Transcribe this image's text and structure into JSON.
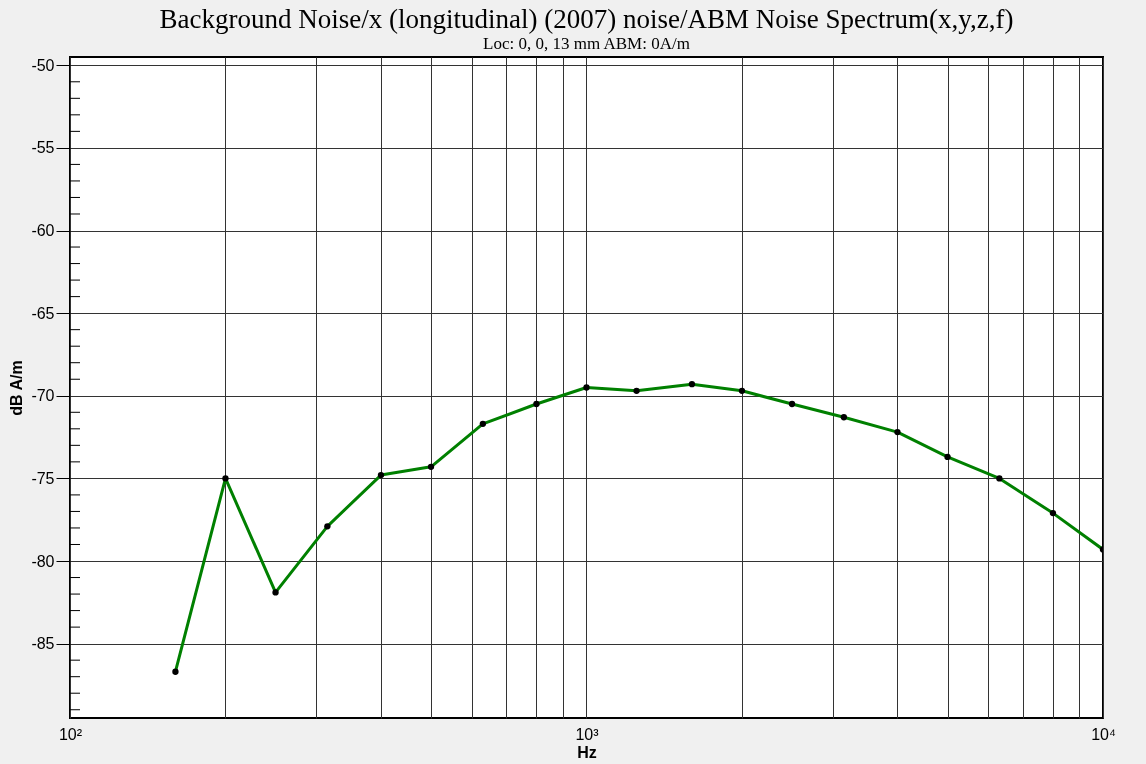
{
  "chart_data": {
    "type": "line",
    "title": "Background Noise/x (longitudinal) (2007) noise/ABM Noise Spectrum(x,y,z,f)",
    "subtitle": "Loc: 0, 0, 13 mm ABM: 0A/m",
    "xlabel": "Hz",
    "ylabel": "dB A/m",
    "x": [
      160,
      200,
      250,
      315,
      400,
      500,
      630,
      800,
      1000,
      1250,
      1600,
      2000,
      2500,
      3150,
      4000,
      5000,
      6300,
      8000,
      10000
    ],
    "series": [
      {
        "color": "#008000",
        "values": [
          -86.7,
          -75.0,
          -81.9,
          -77.9,
          -74.8,
          -74.3,
          -71.7,
          -70.5,
          -69.5,
          -69.7,
          -69.3,
          -69.7,
          -70.5,
          -71.3,
          -72.2,
          -73.7,
          -75.0,
          -77.1,
          -79.3
        ]
      }
    ],
    "log": "x",
    "xlim": [
      100,
      10000
    ],
    "ylim": [
      -89.5,
      -49.5
    ],
    "xticks": [
      {
        "value": 100,
        "label": "10²"
      },
      {
        "value": 200,
        "label": null
      },
      {
        "value": 300,
        "label": null
      },
      {
        "value": 400,
        "label": null
      },
      {
        "value": 500,
        "label": null
      },
      {
        "value": 600,
        "label": null
      },
      {
        "value": 700,
        "label": null
      },
      {
        "value": 800,
        "label": null
      },
      {
        "value": 900,
        "label": null
      },
      {
        "value": 1000,
        "label": "10³"
      },
      {
        "value": 2000,
        "label": null
      },
      {
        "value": 3000,
        "label": null
      },
      {
        "value": 4000,
        "label": null
      },
      {
        "value": 5000,
        "label": null
      },
      {
        "value": 6000,
        "label": null
      },
      {
        "value": 7000,
        "label": null
      },
      {
        "value": 8000,
        "label": null
      },
      {
        "value": 9000,
        "label": null
      },
      {
        "value": 10000,
        "label": "10⁴"
      }
    ],
    "yticks": [
      -85,
      -80,
      -75,
      -70,
      -65,
      -60,
      -55,
      -50
    ],
    "grid": true,
    "marker": "circle",
    "line_style": "solid"
  }
}
